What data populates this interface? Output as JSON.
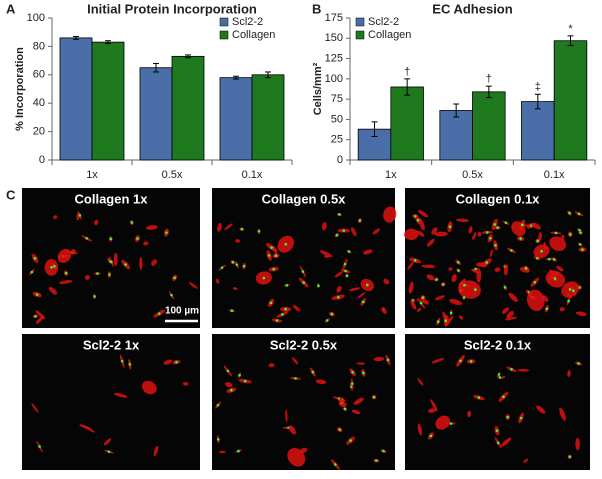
{
  "chart_data": [
    {
      "type": "bar",
      "panel_label": "A",
      "title": "Initial Protein Incorporation",
      "y_label": "% Incorporation",
      "categories": [
        "1x",
        "0.5x",
        "0.1x"
      ],
      "series": [
        {
          "name": "Scl2-2",
          "color": "#4a6ea8",
          "values": [
            86,
            65,
            58
          ],
          "errors": [
            1,
            3,
            1
          ]
        },
        {
          "name": "Collagen",
          "color": "#1f7a1f",
          "values": [
            83,
            73,
            60
          ],
          "errors": [
            1,
            1,
            2
          ]
        }
      ],
      "ylim": [
        0,
        100
      ],
      "yticks": [
        0,
        20,
        40,
        60,
        80,
        100
      ],
      "legend": "upper right",
      "grid": false
    },
    {
      "type": "bar",
      "panel_label": "B",
      "title": "EC Adhesion",
      "y_label": "Cells/mm²",
      "categories": [
        "1x",
        "0.5x",
        "0.1x"
      ],
      "series": [
        {
          "name": "Scl2-2",
          "color": "#4a6ea8",
          "values": [
            38,
            61,
            72
          ],
          "errors": [
            9,
            8,
            9
          ],
          "significance": [
            null,
            null,
            "‡"
          ]
        },
        {
          "name": "Collagen",
          "color": "#1f7a1f",
          "values": [
            90,
            84,
            147
          ],
          "errors": [
            10,
            7,
            6
          ],
          "significance": [
            "†",
            "†",
            "*"
          ]
        }
      ],
      "ylim": [
        0,
        175
      ],
      "yticks": [
        0,
        25,
        50,
        75,
        100,
        125,
        150,
        175
      ],
      "legend": "upper left",
      "grid": false
    }
  ],
  "panel_c": {
    "label": "C",
    "scale_bar": "100 µm",
    "images": [
      {
        "label": "Collagen 1x"
      },
      {
        "label": "Collagen 0.5x"
      },
      {
        "label": "Collagen 0.1x"
      },
      {
        "label": "Scl2-2 1x"
      },
      {
        "label": "Scl2-2 0.5x"
      },
      {
        "label": "Scl2-2 0.1x"
      }
    ]
  }
}
